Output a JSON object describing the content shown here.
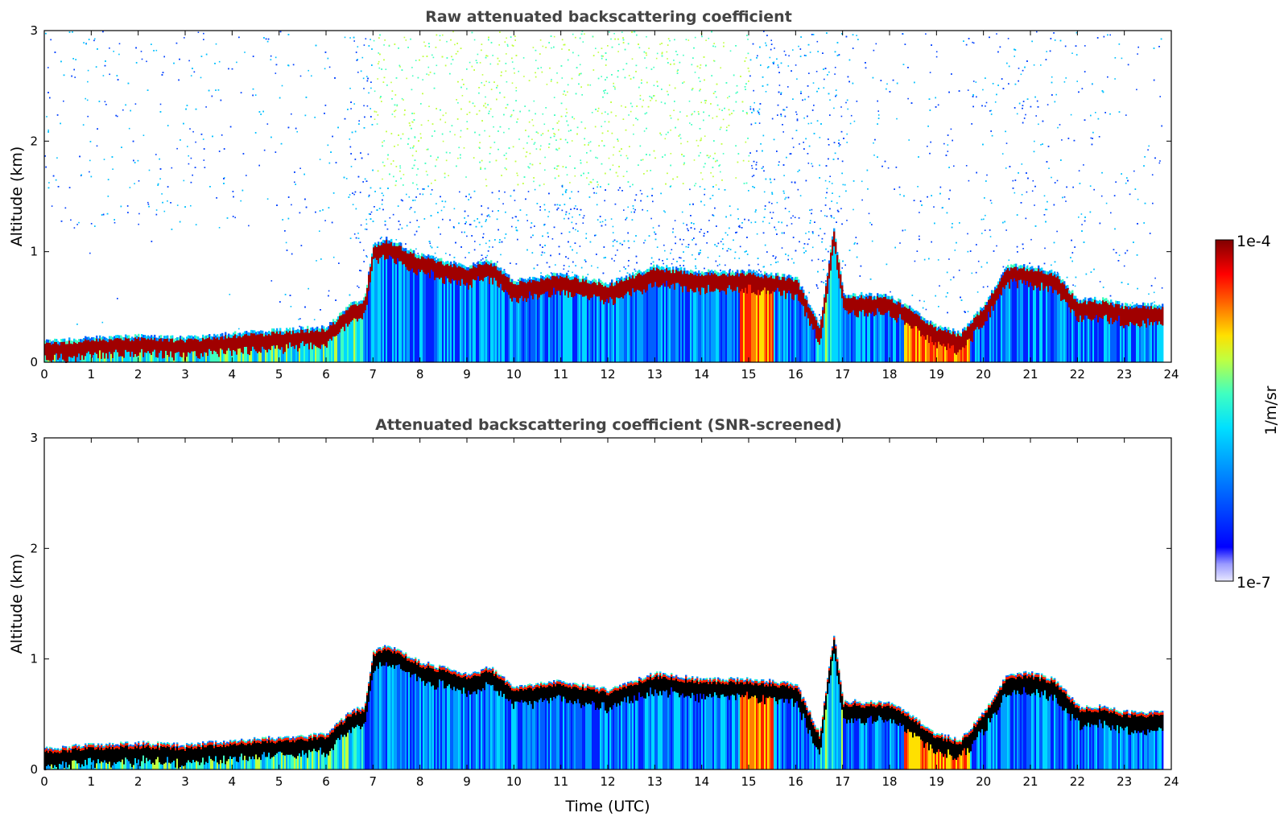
{
  "figure": {
    "colorbar": {
      "max_label": "1e-4",
      "min_label": "1e-7",
      "unit_label": "1/m/sr",
      "scale": "log",
      "colormap": "jet"
    },
    "xlabel": "Time (UTC)"
  },
  "chart_data": [
    {
      "type": "heatmap",
      "title": "Raw attenuated backscattering coefficient",
      "xlabel": "",
      "ylabel": "Altitude (km)",
      "xlim": [
        0,
        24
      ],
      "ylim": [
        0,
        3
      ],
      "x_ticks": [
        "0",
        "1",
        "2",
        "3",
        "4",
        "5",
        "6",
        "7",
        "8",
        "9",
        "10",
        "11",
        "12",
        "13",
        "14",
        "15",
        "16",
        "17",
        "18",
        "19",
        "20",
        "21",
        "22",
        "23",
        "24"
      ],
      "y_ticks": [
        "0",
        "1",
        "2",
        "3"
      ],
      "grid": false,
      "data_end_time": 23.8,
      "boundary_layer_top_km": [
        [
          0,
          0.17
        ],
        [
          1,
          0.2
        ],
        [
          2,
          0.22
        ],
        [
          3,
          0.2
        ],
        [
          4,
          0.24
        ],
        [
          5,
          0.27
        ],
        [
          6,
          0.3
        ],
        [
          6.5,
          0.5
        ],
        [
          6.8,
          0.55
        ],
        [
          7,
          1.05
        ],
        [
          7.3,
          1.1
        ],
        [
          8,
          0.95
        ],
        [
          9,
          0.85
        ],
        [
          9.5,
          0.9
        ],
        [
          10,
          0.72
        ],
        [
          11,
          0.78
        ],
        [
          12,
          0.7
        ],
        [
          13,
          0.85
        ],
        [
          14,
          0.8
        ],
        [
          15,
          0.8
        ],
        [
          16,
          0.75
        ],
        [
          16.5,
          0.3
        ],
        [
          16.8,
          1.2
        ],
        [
          17,
          0.6
        ],
        [
          18,
          0.58
        ],
        [
          18.5,
          0.45
        ],
        [
          19,
          0.3
        ],
        [
          19.5,
          0.25
        ],
        [
          20,
          0.5
        ],
        [
          20.5,
          0.85
        ],
        [
          21,
          0.85
        ],
        [
          21.5,
          0.8
        ],
        [
          22,
          0.55
        ],
        [
          22.5,
          0.55
        ],
        [
          23,
          0.5
        ],
        [
          23.8,
          0.5
        ]
      ],
      "noise_density": "high"
    },
    {
      "type": "heatmap",
      "title": "Attenuated backscattering coefficient (SNR-screened)",
      "xlabel": "Time (UTC)",
      "ylabel": "Altitude (km)",
      "xlim": [
        0,
        24
      ],
      "ylim": [
        0,
        3
      ],
      "x_ticks": [
        "0",
        "1",
        "2",
        "3",
        "4",
        "5",
        "6",
        "7",
        "8",
        "9",
        "10",
        "11",
        "12",
        "13",
        "14",
        "15",
        "16",
        "17",
        "18",
        "19",
        "20",
        "21",
        "22",
        "23",
        "24"
      ],
      "y_ticks": [
        "0",
        "1",
        "2",
        "3"
      ],
      "grid": false,
      "data_end_time": 23.8,
      "boundary_layer_top_km": [
        [
          0,
          0.17
        ],
        [
          1,
          0.2
        ],
        [
          2,
          0.22
        ],
        [
          3,
          0.2
        ],
        [
          4,
          0.24
        ],
        [
          5,
          0.27
        ],
        [
          6,
          0.3
        ],
        [
          6.5,
          0.5
        ],
        [
          6.8,
          0.55
        ],
        [
          7,
          1.05
        ],
        [
          7.3,
          1.1
        ],
        [
          8,
          0.95
        ],
        [
          9,
          0.85
        ],
        [
          9.5,
          0.9
        ],
        [
          10,
          0.72
        ],
        [
          11,
          0.78
        ],
        [
          12,
          0.7
        ],
        [
          13,
          0.85
        ],
        [
          14,
          0.8
        ],
        [
          15,
          0.8
        ],
        [
          16,
          0.75
        ],
        [
          16.5,
          0.3
        ],
        [
          16.8,
          1.2
        ],
        [
          17,
          0.6
        ],
        [
          18,
          0.58
        ],
        [
          18.5,
          0.45
        ],
        [
          19,
          0.3
        ],
        [
          19.5,
          0.25
        ],
        [
          20,
          0.5
        ],
        [
          20.5,
          0.85
        ],
        [
          21,
          0.85
        ],
        [
          21.5,
          0.8
        ],
        [
          22,
          0.55
        ],
        [
          22.5,
          0.55
        ],
        [
          23,
          0.5
        ],
        [
          23.8,
          0.5
        ]
      ],
      "noise_density": "none"
    }
  ]
}
